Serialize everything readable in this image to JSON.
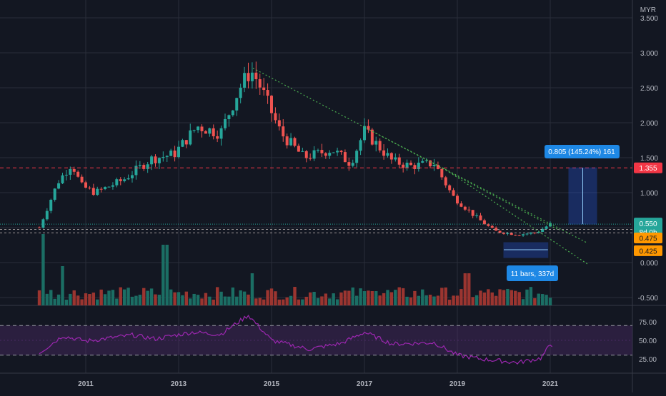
{
  "currency": "MYR",
  "colors": {
    "background": "#131722",
    "grid": "#2a2e39",
    "axis_text": "#b2b5be",
    "up": "#26a69a",
    "down": "#ef5350",
    "vol_up": "#1b6e64",
    "vol_down": "#9b3530",
    "rsi_line": "#9c27b0",
    "rsi_band": "#4a2a63",
    "trend": "#4caf50",
    "level": "#f23645",
    "orange": "#ff9800",
    "measure_box": "#2962ff",
    "measure_label": "#1e88e5"
  },
  "price_axis": {
    "ticks": [
      "3.500",
      "3.000",
      "2.500",
      "2.000",
      "1.500",
      "1.000",
      "0.500",
      "0.000",
      "-0.500"
    ]
  },
  "rsi_axis": {
    "ticks": [
      "75.00",
      "50.00",
      "25.00"
    ],
    "upper": 70,
    "lower": 30
  },
  "time_axis": {
    "labels": [
      "2011",
      "2013",
      "2015",
      "2017",
      "2019",
      "2021"
    ]
  },
  "badges": {
    "resistance": "1.355",
    "last_price": "0.550",
    "countdown": "8d 0h",
    "level_a": "0.475",
    "level_b": "0.425"
  },
  "annotations": {
    "range_measure": "0.805 (145.24%) 161",
    "bars_measure": "11 bars, 337d"
  },
  "chart_data": {
    "type": "candlestick",
    "currency": "MYR",
    "x": [
      "2011",
      "2013",
      "2015",
      "2017",
      "2019",
      "2021"
    ],
    "yrange": [
      -0.6,
      3.55
    ],
    "levels": [
      1.355,
      0.475,
      0.425
    ],
    "last_price": 0.55,
    "anchors": [
      {
        "t": 2010.0,
        "p": 0.5
      },
      {
        "t": 2010.4,
        "p": 1.15
      },
      {
        "t": 2010.7,
        "p": 1.42
      },
      {
        "t": 2010.9,
        "p": 1.1
      },
      {
        "t": 2011.2,
        "p": 1.0
      },
      {
        "t": 2011.8,
        "p": 1.18
      },
      {
        "t": 2012.4,
        "p": 1.48
      },
      {
        "t": 2012.9,
        "p": 1.55
      },
      {
        "t": 2013.4,
        "p": 1.95
      },
      {
        "t": 2013.9,
        "p": 1.85
      },
      {
        "t": 2014.3,
        "p": 2.48
      },
      {
        "t": 2014.55,
        "p": 2.75
      },
      {
        "t": 2014.7,
        "p": 2.6
      },
      {
        "t": 2015.2,
        "p": 1.85
      },
      {
        "t": 2015.7,
        "p": 1.5
      },
      {
        "t": 2016.3,
        "p": 1.62
      },
      {
        "t": 2016.7,
        "p": 1.42
      },
      {
        "t": 2017.0,
        "p": 1.88
      },
      {
        "t": 2017.6,
        "p": 1.45
      },
      {
        "t": 2018.0,
        "p": 1.38
      },
      {
        "t": 2018.5,
        "p": 1.42
      },
      {
        "t": 2018.9,
        "p": 0.95
      },
      {
        "t": 2019.4,
        "p": 0.65
      },
      {
        "t": 2019.8,
        "p": 0.45
      },
      {
        "t": 2020.3,
        "p": 0.4
      },
      {
        "t": 2020.7,
        "p": 0.43
      },
      {
        "t": 2021.0,
        "p": 0.55
      }
    ],
    "rsi_anchors": [
      {
        "t": 2010.0,
        "p": 33
      },
      {
        "t": 2010.5,
        "p": 56
      },
      {
        "t": 2011.0,
        "p": 49
      },
      {
        "t": 2011.5,
        "p": 53
      },
      {
        "t": 2012.0,
        "p": 57
      },
      {
        "t": 2012.5,
        "p": 52
      },
      {
        "t": 2013.3,
        "p": 61
      },
      {
        "t": 2013.9,
        "p": 58
      },
      {
        "t": 2014.5,
        "p": 84
      },
      {
        "t": 2015.0,
        "p": 50
      },
      {
        "t": 2015.8,
        "p": 38
      },
      {
        "t": 2016.5,
        "p": 46
      },
      {
        "t": 2017.0,
        "p": 61
      },
      {
        "t": 2017.6,
        "p": 45
      },
      {
        "t": 2018.5,
        "p": 47
      },
      {
        "t": 2019.0,
        "p": 30
      },
      {
        "t": 2019.5,
        "p": 25
      },
      {
        "t": 2020.3,
        "p": 20
      },
      {
        "t": 2020.8,
        "p": 26
      },
      {
        "t": 2021.0,
        "p": 44
      }
    ],
    "volume_spikes": [
      {
        "t": 2010.1,
        "v": 1.0
      },
      {
        "t": 2010.5,
        "v": 0.55
      },
      {
        "t": 2012.7,
        "v": 0.85
      },
      {
        "t": 2014.6,
        "v": 0.45
      },
      {
        "t": 2017.2,
        "v": 0.2
      },
      {
        "t": 2019.2,
        "v": 0.45
      },
      {
        "t": 2021.1,
        "v": 0.28
      }
    ],
    "trendlines": [
      {
        "from": {
          "t": 2014.6,
          "p": 2.78
        },
        "to": {
          "t": 2021.2,
          "p": 0.46
        }
      },
      {
        "from": {
          "t": 2017.1,
          "p": 1.9
        },
        "to": {
          "t": 2021.8,
          "p": 0.28
        }
      },
      {
        "from": {
          "t": 2018.7,
          "p": 1.35
        },
        "to": {
          "t": 2021.8,
          "p": -0.02
        }
      }
    ]
  }
}
